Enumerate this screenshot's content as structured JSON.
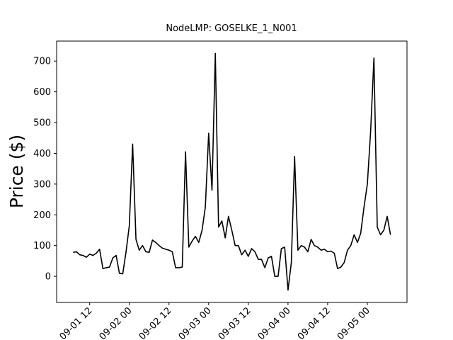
{
  "chart_data": {
    "type": "line",
    "title": "NodeLMP: GOSELKE_1_N001",
    "ylabel": "Price ($)",
    "color": "#000000",
    "x": [
      "09-01 07",
      "09-01 08",
      "09-01 09",
      "09-01 10",
      "09-01 11",
      "09-01 12",
      "09-01 13",
      "09-01 14",
      "09-01 15",
      "09-01 16",
      "09-01 17",
      "09-01 18",
      "09-01 19",
      "09-01 20",
      "09-01 21",
      "09-01 22",
      "09-01 23",
      "09-02 00",
      "09-02 01",
      "09-02 02",
      "09-02 03",
      "09-02 04",
      "09-02 05",
      "09-02 06",
      "09-02 07",
      "09-02 08",
      "09-02 09",
      "09-02 10",
      "09-02 11",
      "09-02 12",
      "09-02 13",
      "09-02 14",
      "09-02 15",
      "09-02 16",
      "09-02 17",
      "09-02 18",
      "09-02 19",
      "09-02 20",
      "09-02 21",
      "09-02 22",
      "09-02 23",
      "09-03 00",
      "09-03 01",
      "09-03 02",
      "09-03 03",
      "09-03 04",
      "09-03 05",
      "09-03 06",
      "09-03 07",
      "09-03 08",
      "09-03 09",
      "09-03 10",
      "09-03 11",
      "09-03 12",
      "09-03 13",
      "09-03 14",
      "09-03 15",
      "09-03 16",
      "09-03 17",
      "09-03 18",
      "09-03 19",
      "09-03 20",
      "09-03 21",
      "09-03 22",
      "09-03 23",
      "09-04 00",
      "09-04 01",
      "09-04 02",
      "09-04 03",
      "09-04 04",
      "09-04 05",
      "09-04 06",
      "09-04 07",
      "09-04 08",
      "09-04 09",
      "09-04 10",
      "09-04 11",
      "09-04 12",
      "09-04 13",
      "09-04 14",
      "09-04 15",
      "09-04 16",
      "09-04 17",
      "09-04 18",
      "09-04 19",
      "09-04 20",
      "09-04 21",
      "09-04 22",
      "09-04 23",
      "09-05 00",
      "09-05 01",
      "09-05 02",
      "09-05 03",
      "09-05 04",
      "09-05 05",
      "09-05 06",
      "09-05 07"
    ],
    "values": [
      78,
      80,
      70,
      68,
      62,
      72,
      68,
      75,
      88,
      25,
      28,
      30,
      60,
      68,
      10,
      8,
      80,
      165,
      430,
      120,
      85,
      100,
      80,
      78,
      118,
      110,
      100,
      92,
      88,
      85,
      80,
      28,
      28,
      30,
      405,
      95,
      115,
      130,
      110,
      150,
      225,
      465,
      280,
      725,
      160,
      180,
      125,
      195,
      150,
      100,
      100,
      70,
      85,
      65,
      90,
      80,
      55,
      55,
      28,
      60,
      65,
      0,
      0,
      90,
      95,
      -45,
      45,
      390,
      85,
      100,
      95,
      80,
      120,
      100,
      95,
      85,
      88,
      80,
      82,
      75,
      25,
      30,
      45,
      85,
      100,
      135,
      110,
      140,
      225,
      300,
      470,
      710,
      160,
      135,
      150,
      195,
      135
    ],
    "xlim": [
      "09-01 02",
      "09-05 12"
    ],
    "xticks": [
      "09-01 12",
      "09-02 00",
      "09-02 12",
      "09-03 00",
      "09-03 12",
      "09-04 00",
      "09-04 12",
      "09-05 00"
    ],
    "ylim": [
      -85,
      765
    ],
    "yticks": [
      0,
      100,
      200,
      300,
      400,
      500,
      600,
      700
    ]
  }
}
